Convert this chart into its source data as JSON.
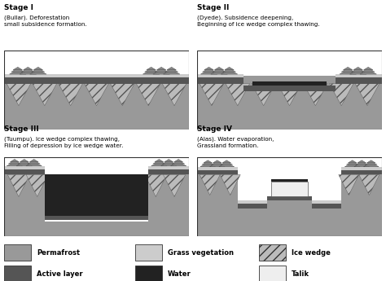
{
  "background_color": "#ffffff",
  "colors": {
    "permafrost": "#999999",
    "active_layer": "#555555",
    "water": "#222222",
    "grass_vegetation": "#cccccc",
    "ice_wedge_fill": "#bbbbbb",
    "talik": "#eeeeee",
    "panel_bg": "#f5f5f5"
  },
  "stages": [
    {
      "label": "Stage I",
      "sublabel": "(Bullar). Deforestation\nsmall subsidence formation."
    },
    {
      "label": "Stage II",
      "sublabel": "(Dyede). Subsidence deepening,\nBeginning of ice wedge complex thawing."
    },
    {
      "label": "Stage III",
      "sublabel": "(Tuumpu). Ice wedge complex thawing,\nFilling of depression by ice wedge water."
    },
    {
      "label": "Stage IV",
      "sublabel": "(Alas). Water evaporation,\nGrassland formation."
    }
  ],
  "legend": [
    {
      "label": "Permafrost",
      "color": "#999999",
      "hatch": "",
      "col": 0
    },
    {
      "label": "Grass vegetation",
      "color": "#cccccc",
      "hatch": "",
      "col": 1
    },
    {
      "label": "Ice wedge",
      "color": "#bbbbbb",
      "hatch": "///",
      "col": 2
    },
    {
      "label": "Active layer",
      "color": "#555555",
      "hatch": "",
      "col": 0
    },
    {
      "label": "Water",
      "color": "#222222",
      "hatch": "",
      "col": 1
    },
    {
      "label": "Talik",
      "color": "#eeeeee",
      "hatch": "",
      "col": 2
    }
  ]
}
